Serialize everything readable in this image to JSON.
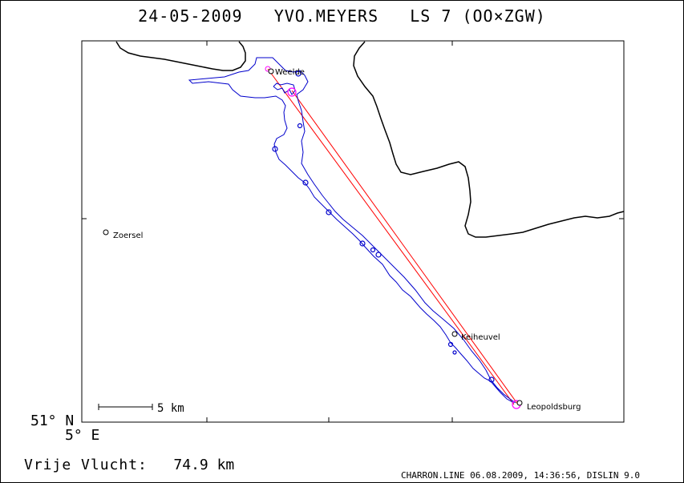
{
  "title": {
    "date": "24-05-2009",
    "pilot": "YVO.MEYERS",
    "glider": "LS 7 (OO×ZGW)"
  },
  "axes": {
    "lat_label": "51° N",
    "lon_label": "5° E"
  },
  "scale_bar": {
    "label": "5 km"
  },
  "places": [
    {
      "name": "Weelde"
    },
    {
      "name": "Zoersel"
    },
    {
      "name": "Keiheuvel"
    },
    {
      "name": "Leopoldsburg"
    }
  ],
  "stats": {
    "distance_label": "Vrije Vlucht:",
    "distance_value": "74.9 km"
  },
  "footer": "CHARRON.LINE 06.08.2009, 14:36:56, DISLIN 9.0",
  "colors": {
    "track": "#0000cc",
    "task_line": "#ff0000",
    "turnpoint": "#ff00ff",
    "border": "#000000"
  }
}
